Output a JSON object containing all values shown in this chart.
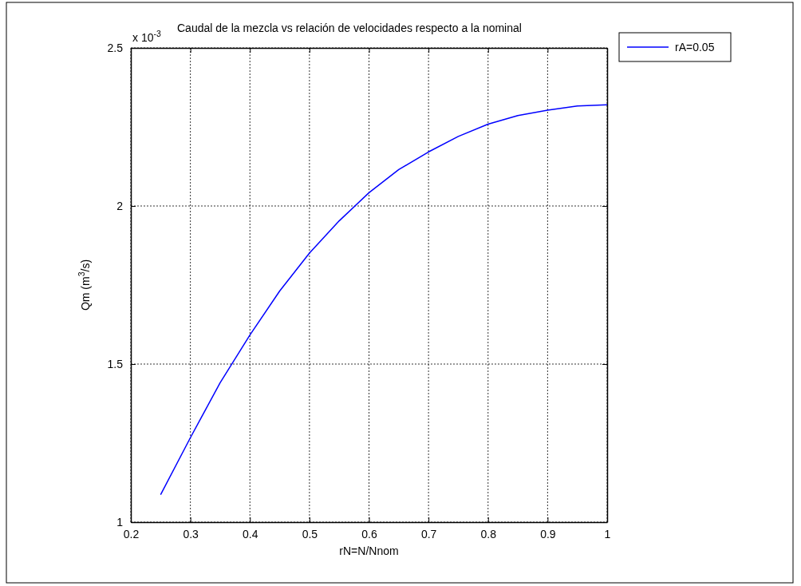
{
  "chart_data": {
    "type": "line",
    "title": "Caudal de la mezcla vs relación de velocidades respecto a la nominal",
    "xlabel": "rN=N/Nnom",
    "ylabel": "Qm  (m$^{3}$/s)",
    "annotations": [
      "x 10$^{-3}$"
    ],
    "x": [
      0.25,
      0.3,
      0.35,
      0.4,
      0.45,
      0.5,
      0.55,
      0.6,
      0.65,
      0.7,
      0.75,
      0.8,
      0.85,
      0.9,
      0.95,
      1.0
    ],
    "series": [
      {
        "name": "rA=0.05",
        "color": "#0000ff",
        "values": [
          1.087,
          1.267,
          1.441,
          1.592,
          1.731,
          1.851,
          1.953,
          2.042,
          2.115,
          2.171,
          2.22,
          2.259,
          2.286,
          2.303,
          2.316,
          2.32
        ]
      }
    ],
    "xlim": [
      0.2,
      1
    ],
    "xticks": [
      0.2,
      0.3,
      0.4,
      0.5,
      0.6,
      0.7,
      0.8,
      0.9,
      1
    ],
    "ylim": [
      1,
      2.5
    ],
    "yticks": [
      1,
      1.5,
      2,
      2.5
    ],
    "grid": true,
    "legend": "top right",
    "line_style": "solid",
    "marker": "none"
  }
}
